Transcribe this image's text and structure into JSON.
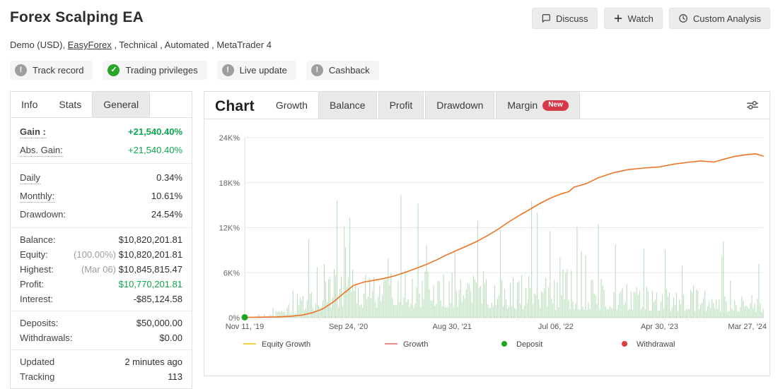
{
  "header": {
    "title": "Forex Scalping EA",
    "subtitle_prefix": "Demo (USD), ",
    "subtitle_link": "EasyForex",
    "subtitle_suffix": " , Technical , Automated , MetaTrader 4",
    "buttons": [
      {
        "id": "discuss",
        "icon": "speech-bubble-icon",
        "label": "Discuss"
      },
      {
        "id": "watch",
        "icon": "plus-icon",
        "label": "Watch"
      },
      {
        "id": "custom-analysis",
        "icon": "clock-icon",
        "label": "Custom Analysis"
      }
    ]
  },
  "badges": [
    {
      "id": "track-record",
      "icon": "exclamation-icon",
      "status": "unverified",
      "label": "Track record"
    },
    {
      "id": "trading-privileges",
      "icon": "check-icon",
      "status": "verified",
      "label": "Trading privileges"
    },
    {
      "id": "live-update",
      "icon": "exclamation-icon",
      "status": "unverified",
      "label": "Live update"
    },
    {
      "id": "cashback",
      "icon": "exclamation-icon",
      "status": "unverified",
      "label": "Cashback"
    }
  ],
  "left_panel": {
    "tabs": [
      {
        "label": "Info",
        "variant": "plain"
      },
      {
        "label": "Stats",
        "variant": "active"
      },
      {
        "label": "General",
        "variant": "inactive"
      }
    ],
    "groups": [
      {
        "density": "roomy",
        "rows": [
          {
            "label": "Gain :",
            "dotted": true,
            "label_bold": true,
            "value": "+21,540.40%",
            "value_class": "green bold"
          },
          {
            "label": "Abs. Gain:",
            "dotted": true,
            "value": "+21,540.40%",
            "value_class": "green"
          }
        ]
      },
      {
        "density": "roomy",
        "rows": [
          {
            "label": "Daily",
            "dotted": true,
            "value": "0.34%"
          },
          {
            "label": "Monthly:",
            "dotted": true,
            "value": "10.61%"
          },
          {
            "label": "Drawdown:",
            "value": "24.54%"
          }
        ]
      },
      {
        "density": "tight",
        "rows": [
          {
            "label": "Balance:",
            "value": "$10,820,201.81"
          },
          {
            "label": "Equity:",
            "prefix": "(100.00%) ",
            "value": "$10,820,201.81"
          },
          {
            "label": "Highest:",
            "prefix": "(Mar 06) ",
            "value": "$10,845,815.47"
          },
          {
            "label": "Profit:",
            "value": "$10,770,201.81",
            "value_class": "green"
          },
          {
            "label": "Interest:",
            "value": "-$85,124.58"
          }
        ]
      },
      {
        "density": "tight",
        "rows": [
          {
            "label": "Deposits:",
            "value": "$50,000.00"
          },
          {
            "label": "Withdrawals:",
            "value": "$0.00"
          }
        ]
      },
      {
        "density": "tight",
        "rows": [
          {
            "label": "Updated",
            "value": "2 minutes ago"
          },
          {
            "label": "Tracking",
            "value": "113"
          }
        ]
      }
    ]
  },
  "chart_panel": {
    "tabs": [
      {
        "label": "Chart",
        "variant": "title"
      },
      {
        "label": "Growth",
        "variant": "active"
      },
      {
        "label": "Balance",
        "variant": "inactive"
      },
      {
        "label": "Profit",
        "variant": "inactive"
      },
      {
        "label": "Drawdown",
        "variant": "inactive"
      },
      {
        "label": "Margin",
        "variant": "inactive",
        "badge": "New"
      }
    ],
    "settings_icon": "sliders-icon"
  },
  "chart_data": {
    "type": "line",
    "title": "Growth",
    "grid": true,
    "ylim": [
      0,
      24000
    ],
    "yticks": [
      {
        "v": 24000,
        "label": "24K%"
      },
      {
        "v": 18000,
        "label": "18K%"
      },
      {
        "v": 12000,
        "label": "12K%"
      },
      {
        "v": 6000,
        "label": "6K%"
      },
      {
        "v": 0,
        "label": "0%"
      }
    ],
    "xticks": [
      {
        "f": 0.0,
        "label": "Nov 11, '19"
      },
      {
        "f": 0.2,
        "label": "Sep 24, '20"
      },
      {
        "f": 0.4,
        "label": "Aug 30, '21"
      },
      {
        "f": 0.6,
        "label": "Jul 06, '22"
      },
      {
        "f": 0.8,
        "label": "Apr 30, '23"
      },
      {
        "f": 1.0,
        "label": "Mar 27, '24"
      }
    ],
    "series": [
      {
        "name": "Growth",
        "color": "#ee7423",
        "width": 1.6,
        "points": [
          [
            0,
            50
          ],
          [
            0.03,
            70
          ],
          [
            0.06,
            100
          ],
          [
            0.09,
            200
          ],
          [
            0.11,
            350
          ],
          [
            0.13,
            650
          ],
          [
            0.15,
            1150
          ],
          [
            0.17,
            2050
          ],
          [
            0.19,
            3200
          ],
          [
            0.21,
            4300
          ],
          [
            0.23,
            4750
          ],
          [
            0.25,
            5000
          ],
          [
            0.27,
            5250
          ],
          [
            0.29,
            5600
          ],
          [
            0.31,
            6050
          ],
          [
            0.33,
            6550
          ],
          [
            0.35,
            7100
          ],
          [
            0.37,
            7700
          ],
          [
            0.39,
            8400
          ],
          [
            0.41,
            9000
          ],
          [
            0.43,
            9600
          ],
          [
            0.45,
            10250
          ],
          [
            0.47,
            11000
          ],
          [
            0.49,
            11850
          ],
          [
            0.51,
            12800
          ],
          [
            0.53,
            13650
          ],
          [
            0.55,
            14450
          ],
          [
            0.57,
            15250
          ],
          [
            0.59,
            15950
          ],
          [
            0.61,
            16500
          ],
          [
            0.625,
            16800
          ],
          [
            0.635,
            17400
          ],
          [
            0.66,
            17900
          ],
          [
            0.68,
            18600
          ],
          [
            0.71,
            19300
          ],
          [
            0.74,
            19750
          ],
          [
            0.77,
            19950
          ],
          [
            0.8,
            20100
          ],
          [
            0.83,
            20500
          ],
          [
            0.86,
            20750
          ],
          [
            0.88,
            20900
          ],
          [
            0.905,
            20750
          ],
          [
            0.925,
            21150
          ],
          [
            0.945,
            21500
          ],
          [
            0.965,
            21700
          ],
          [
            0.985,
            21850
          ],
          [
            1,
            21540
          ]
        ]
      }
    ],
    "bars": {
      "name": "equity-volatility-bars",
      "color": "rgba(128,196,130,0.55)",
      "count": 366,
      "seed": 9,
      "spike_prob": 0.06,
      "base_envelope": [
        [
          0,
          120
        ],
        [
          0.05,
          500
        ],
        [
          0.1,
          2600
        ],
        [
          0.15,
          5200
        ],
        [
          0.2,
          6500
        ],
        [
          0.3,
          6500
        ],
        [
          0.4,
          7000
        ],
        [
          0.5,
          6000
        ],
        [
          0.6,
          5200
        ],
        [
          0.7,
          5200
        ],
        [
          0.8,
          4200
        ],
        [
          0.9,
          3600
        ],
        [
          1,
          3600
        ]
      ],
      "spike_envelope": [
        [
          0,
          300
        ],
        [
          0.08,
          2000
        ],
        [
          0.12,
          10000
        ],
        [
          0.16,
          19000
        ],
        [
          0.2,
          18000
        ],
        [
          0.25,
          15000
        ],
        [
          0.3,
          16500
        ],
        [
          0.35,
          18000
        ],
        [
          0.4,
          18500
        ],
        [
          0.45,
          14000
        ],
        [
          0.5,
          13000
        ],
        [
          0.55,
          16000
        ],
        [
          0.6,
          14000
        ],
        [
          0.65,
          18000
        ],
        [
          0.7,
          16000
        ],
        [
          0.75,
          12000
        ],
        [
          0.8,
          10000
        ],
        [
          0.85,
          9000
        ],
        [
          0.9,
          12000
        ],
        [
          0.95,
          10000
        ],
        [
          1,
          9000
        ]
      ]
    },
    "markers": [
      {
        "type": "deposit",
        "f": 0,
        "v": 50,
        "color": "#1ea421"
      }
    ],
    "legend": [
      {
        "label": "Equity Growth",
        "swatch": "line",
        "color": "#f3d23c"
      },
      {
        "label": "Growth",
        "swatch": "line",
        "color": "#e98a8a"
      },
      {
        "label": "Deposit",
        "swatch": "dot",
        "color": "#1ea421"
      },
      {
        "label": "Withdrawal",
        "swatch": "dot",
        "color": "#e0393e"
      }
    ]
  }
}
